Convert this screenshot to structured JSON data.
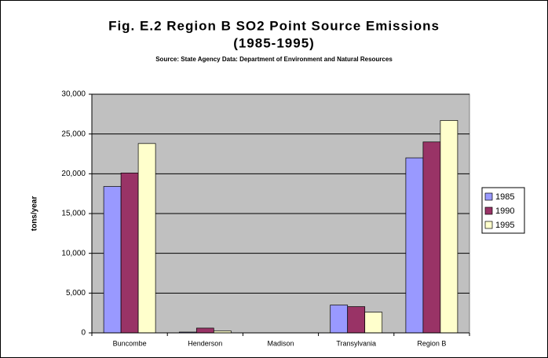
{
  "chart_data": {
    "type": "bar",
    "title": [
      "Fig. E.2 Region B SO2 Point Source Emissions",
      "(1985-1995)"
    ],
    "subtitle": "Source: State Agency Data: Department of Environment and Natural Resources",
    "y_label": "tons/year",
    "categories": [
      "Buncombe",
      "Henderson",
      "Madison",
      "Transylvania",
      "Region B"
    ],
    "series": [
      {
        "name": "1985",
        "color": "#9999ff",
        "values": [
          18400,
          100,
          0,
          3500,
          22000
        ]
      },
      {
        "name": "1990",
        "color": "#993366",
        "values": [
          20100,
          600,
          0,
          3300,
          24000
        ]
      },
      {
        "name": "1995",
        "color": "#ffffcc",
        "values": [
          23800,
          250,
          0,
          2600,
          26700
        ]
      }
    ],
    "ylim": [
      0,
      30000
    ],
    "yticks": [
      0,
      {
        "value": 5000,
        "label": "5,000"
      },
      {
        "value": 10000,
        "label": "10,000"
      },
      {
        "value": 15000,
        "label": "15,000"
      },
      {
        "value": 20000,
        "label": "20,000"
      },
      {
        "value": 25000,
        "label": "25,000"
      },
      {
        "value": 30000,
        "label": "30,000"
      }
    ],
    "grid": true,
    "legend": "right"
  }
}
